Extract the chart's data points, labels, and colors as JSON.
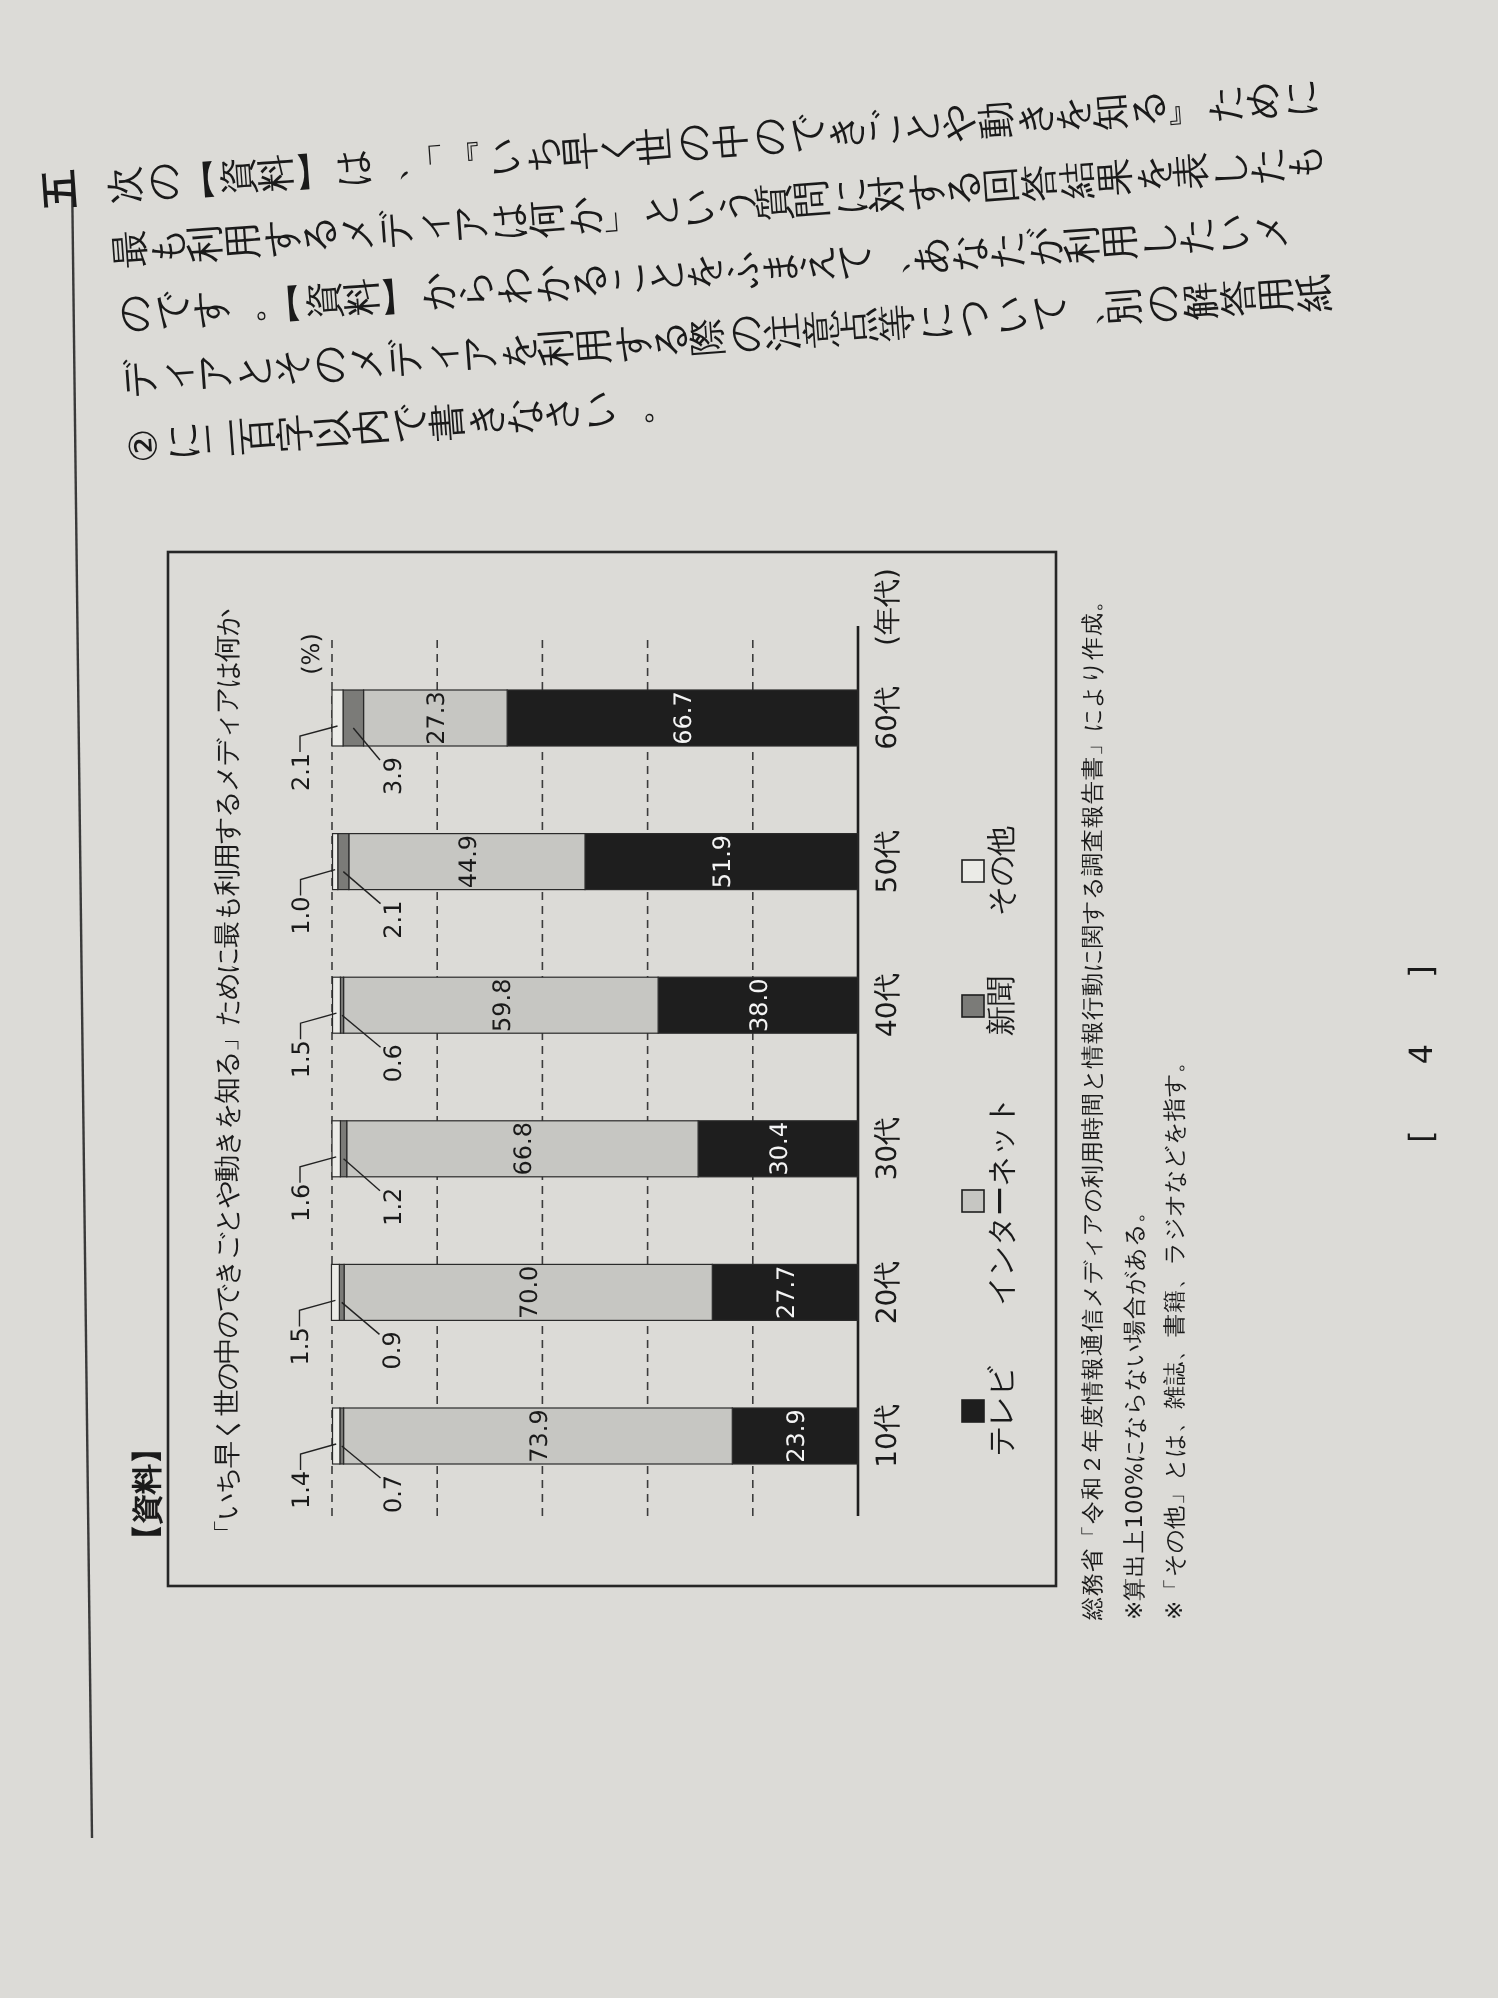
{
  "chart_data": {
    "type": "bar",
    "orientation": "horizontal",
    "stacked": true,
    "title": "「いち早く世の中のできごとや動きを知る」ために最も利用するメディアは何か",
    "ylabel": "(年代)",
    "categories": [
      "60代",
      "50代",
      "40代",
      "30代",
      "20代",
      "10代"
    ],
    "series": [
      {
        "name": "テレビ",
        "color": "#1e1e1e",
        "values": [
          66.7,
          51.9,
          38.0,
          30.4,
          27.7,
          23.9
        ],
        "value_labels": [
          "66.7",
          "51.9",
          "38.0",
          "30.4",
          "27.7",
          "23.9"
        ]
      },
      {
        "name": "インターネット",
        "color": "#c6c6c2",
        "values": [
          27.3,
          44.9,
          59.8,
          66.8,
          70.0,
          73.9
        ],
        "value_labels": [
          "27.3",
          "44.9",
          "59.8",
          "66.8",
          "70.0",
          "73.9"
        ]
      },
      {
        "name": "新聞",
        "color": "#7b7b78",
        "values": [
          3.9,
          2.1,
          0.6,
          1.2,
          0.9,
          0.7
        ],
        "value_labels": [
          "3.9",
          "2.1",
          "0.6",
          "1.2",
          "0.9",
          "0.7"
        ]
      },
      {
        "name": "その他",
        "color": "#ebebe7",
        "values": [
          2.1,
          1.0,
          1.5,
          1.6,
          1.5,
          1.4
        ],
        "value_labels": [
          "2.1",
          "1.0",
          "1.5",
          "1.6",
          "1.5",
          "1.4"
        ]
      }
    ],
    "xlim": [
      100,
      0
    ],
    "xticks": [
      {
        "value": 100,
        "label": null
      },
      {
        "value": 80,
        "label": null
      },
      {
        "value": 60,
        "label": null
      },
      {
        "value": 40,
        "label": null
      },
      {
        "value": 20,
        "label": null
      }
    ],
    "grid": "x",
    "tick_labels": "y",
    "legend": "right",
    "annotations": [
      "五",
      "次の【資料】は、「『いち早く世の中のできごとや動きを知る』ために最も利用するメディアは何か」という質問に対する回答結果を表したものです。【資料】からわかることをふまえて、あなたが利用したいメディアとそのメディアを利用する際の注意点等について、別の解答用紙②に二百字以内で書きなさい。",
      "【資料】",
      "総務省「令和２年度情報通信メディアの利用時間と情報行動に関する調査報告書」により作成。",
      "※算出上100%にならない場合がある。",
      "※「その他」とは、雑誌、書籍、ラジオなどを指す。",
      "[ 4 ]",
      "(%)"
    ]
  }
}
